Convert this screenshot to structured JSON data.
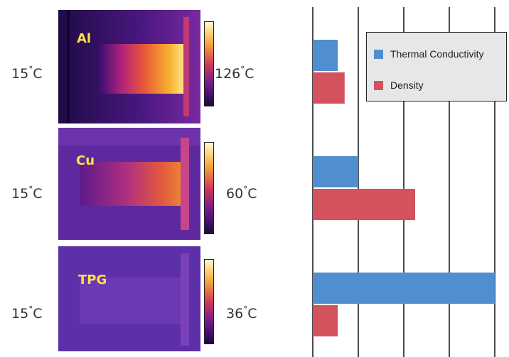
{
  "panels": [
    {
      "material": "Al",
      "left_temp": "15",
      "right_temp": "126",
      "unit": "°C"
    },
    {
      "material": "Cu",
      "left_temp": "15",
      "right_temp": "60",
      "unit": "°C"
    },
    {
      "material": "TPG",
      "left_temp": "15",
      "right_temp": "36",
      "unit": "°C"
    }
  ],
  "colors": {
    "thermal_conductivity": "#4f8fcf",
    "density": "#d4515e"
  },
  "chart_data": {
    "type": "bar",
    "orientation": "horizontal",
    "categories": [
      "Al",
      "Cu",
      "TPG"
    ],
    "series": [
      {
        "name": "Thermal Conductivity",
        "values": [
          0.55,
          1.0,
          4.0
        ]
      },
      {
        "name": "Density",
        "values": [
          0.7,
          2.25,
          0.55
        ]
      }
    ],
    "xlim": [
      0,
      4.2
    ],
    "grid": true,
    "legend": "top-right"
  }
}
